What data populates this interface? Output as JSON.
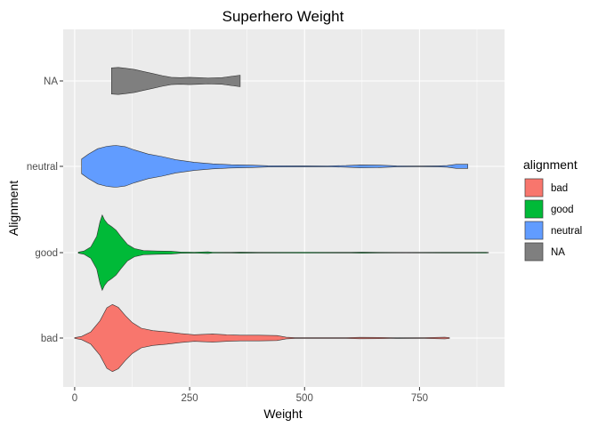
{
  "chart_data": {
    "type": "violin",
    "title": "Superhero Weight",
    "xlabel": "Weight",
    "ylabel": "Alignment",
    "xlim": [
      -25,
      935
    ],
    "x_ticks": [
      0,
      250,
      500,
      750
    ],
    "categories": [
      "bad",
      "good",
      "neutral",
      "NA"
    ],
    "grid": true,
    "legend": {
      "title": "alignment",
      "position": "right",
      "items": [
        {
          "label": "bad",
          "color": "#F8766D"
        },
        {
          "label": "good",
          "color": "#00BA38"
        },
        {
          "label": "neutral",
          "color": "#619CFF"
        },
        {
          "label": "NA",
          "color": "#7F7F7F"
        }
      ]
    },
    "series": [
      {
        "name": "bad",
        "color": "#F8766D",
        "profile": [
          [
            0,
            0.008
          ],
          [
            15,
            0.04
          ],
          [
            35,
            0.15
          ],
          [
            55,
            0.42
          ],
          [
            70,
            0.74
          ],
          [
            82,
            0.82
          ],
          [
            95,
            0.75
          ],
          [
            110,
            0.55
          ],
          [
            125,
            0.38
          ],
          [
            145,
            0.24
          ],
          [
            170,
            0.18
          ],
          [
            200,
            0.15
          ],
          [
            230,
            0.11
          ],
          [
            260,
            0.08
          ],
          [
            300,
            0.1
          ],
          [
            330,
            0.08
          ],
          [
            360,
            0.07
          ],
          [
            400,
            0.07
          ],
          [
            440,
            0.06
          ],
          [
            460,
            0.02
          ],
          [
            480,
            0.008
          ],
          [
            530,
            0.008
          ],
          [
            590,
            0.008
          ],
          [
            620,
            0.018
          ],
          [
            660,
            0.015
          ],
          [
            700,
            0.006
          ],
          [
            760,
            0.008
          ],
          [
            805,
            0.02
          ],
          [
            815,
            0.01
          ]
        ]
      },
      {
        "name": "good",
        "color": "#00BA38",
        "profile": [
          [
            8,
            0.012
          ],
          [
            20,
            0.04
          ],
          [
            35,
            0.14
          ],
          [
            48,
            0.4
          ],
          [
            55,
            0.75
          ],
          [
            60,
            0.92
          ],
          [
            65,
            0.8
          ],
          [
            72,
            0.7
          ],
          [
            80,
            0.64
          ],
          [
            90,
            0.55
          ],
          [
            100,
            0.4
          ],
          [
            115,
            0.2
          ],
          [
            130,
            0.1
          ],
          [
            150,
            0.05
          ],
          [
            180,
            0.04
          ],
          [
            210,
            0.035
          ],
          [
            230,
            0.015
          ],
          [
            260,
            0.01
          ],
          [
            290,
            0.02
          ],
          [
            300,
            0.01
          ],
          [
            340,
            0.008
          ],
          [
            360,
            0.012
          ],
          [
            400,
            0.008
          ],
          [
            500,
            0.01
          ],
          [
            600,
            0.008
          ],
          [
            625,
            0.012
          ],
          [
            660,
            0.008
          ],
          [
            720,
            0.006
          ],
          [
            800,
            0.008
          ],
          [
            850,
            0.008
          ],
          [
            895,
            0.01
          ],
          [
            900,
            0.004
          ]
        ]
      },
      {
        "name": "neutral",
        "color": "#619CFF",
        "profile": [
          [
            15,
            0.18
          ],
          [
            30,
            0.3
          ],
          [
            50,
            0.43
          ],
          [
            70,
            0.49
          ],
          [
            90,
            0.51
          ],
          [
            110,
            0.48
          ],
          [
            130,
            0.4
          ],
          [
            160,
            0.3
          ],
          [
            190,
            0.24
          ],
          [
            220,
            0.16
          ],
          [
            260,
            0.1
          ],
          [
            300,
            0.06
          ],
          [
            340,
            0.04
          ],
          [
            380,
            0.03
          ],
          [
            420,
            0.015
          ],
          [
            500,
            0.012
          ],
          [
            550,
            0.01
          ],
          [
            590,
            0.02
          ],
          [
            620,
            0.035
          ],
          [
            660,
            0.03
          ],
          [
            700,
            0.012
          ],
          [
            750,
            0.008
          ],
          [
            790,
            0.012
          ],
          [
            810,
            0.02
          ],
          [
            830,
            0.05
          ],
          [
            855,
            0.05
          ]
        ]
      },
      {
        "name": "NA",
        "color": "#7F7F7F",
        "profile": [
          [
            80,
            0.32
          ],
          [
            95,
            0.33
          ],
          [
            110,
            0.31
          ],
          [
            130,
            0.28
          ],
          [
            150,
            0.23
          ],
          [
            170,
            0.18
          ],
          [
            190,
            0.13
          ],
          [
            210,
            0.09
          ],
          [
            230,
            0.08
          ],
          [
            250,
            0.09
          ],
          [
            270,
            0.08
          ],
          [
            290,
            0.07
          ],
          [
            320,
            0.08
          ],
          [
            345,
            0.12
          ],
          [
            360,
            0.14
          ]
        ]
      }
    ]
  }
}
